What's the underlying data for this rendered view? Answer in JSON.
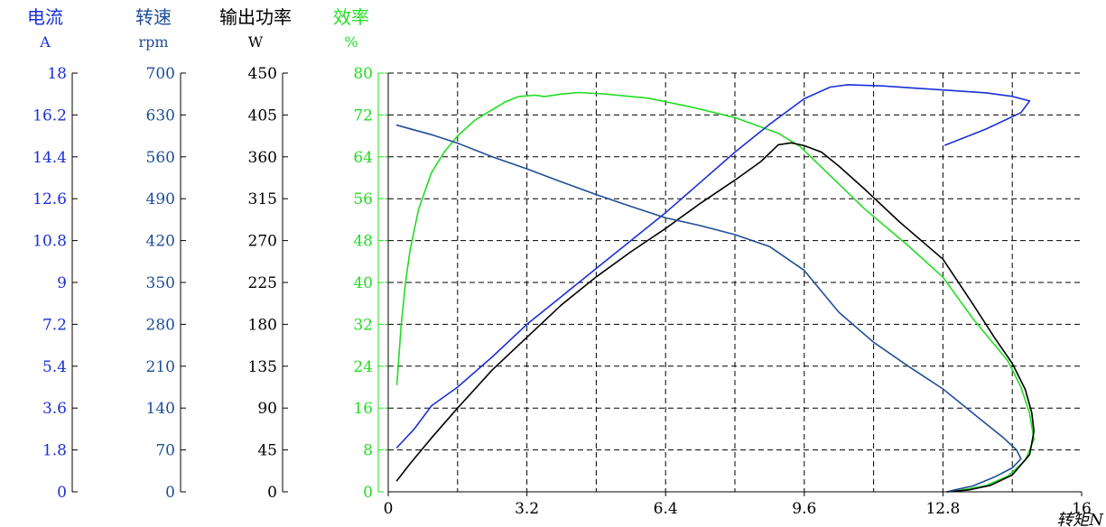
{
  "chart_data": {
    "type": "line",
    "title": "",
    "xlabel": "转矩N",
    "x_ticks": [
      "0",
      "3.2",
      "6.4",
      "9.6",
      "12.8",
      "16"
    ],
    "xlim": [
      0,
      16
    ],
    "grid": true,
    "axes": [
      {
        "id": "current",
        "title": "电流",
        "unit": "A",
        "color": "#1a2fd6",
        "range": [
          0,
          18
        ],
        "ticks": [
          "0",
          "1.8",
          "3.6",
          "5.4",
          "7.2",
          "9",
          "10.8",
          "12.6",
          "14.4",
          "16.2",
          "18"
        ]
      },
      {
        "id": "speed",
        "title": "转速",
        "unit": "rpm",
        "color": "#1f4e96",
        "range": [
          0,
          700
        ],
        "ticks": [
          "0",
          "70",
          "140",
          "210",
          "280",
          "350",
          "420",
          "490",
          "560",
          "630",
          "700"
        ]
      },
      {
        "id": "power",
        "title": "输出功率",
        "unit": "W",
        "color": "#000000",
        "range": [
          0,
          450
        ],
        "ticks": [
          "0",
          "45",
          "90",
          "135",
          "180",
          "225",
          "270",
          "315",
          "360",
          "405",
          "450"
        ]
      },
      {
        "id": "efficiency",
        "title": "效率",
        "unit": "%",
        "color": "#22dd22",
        "range": [
          0,
          80
        ],
        "ticks": [
          "0",
          "8",
          "16",
          "24",
          "32",
          "40",
          "48",
          "56",
          "64",
          "72",
          "80"
        ]
      }
    ],
    "series": [
      {
        "axis": "efficiency",
        "color": "#22dd22",
        "points": [
          [
            0.2,
            20.5
          ],
          [
            0.3,
            32
          ],
          [
            0.4,
            40
          ],
          [
            0.5,
            46
          ],
          [
            0.7,
            54
          ],
          [
            1.0,
            61
          ],
          [
            1.3,
            65
          ],
          [
            1.6,
            68
          ],
          [
            2.0,
            71
          ],
          [
            2.4,
            73
          ],
          [
            2.7,
            74.5
          ],
          [
            3.0,
            75.5
          ],
          [
            3.4,
            75.8
          ],
          [
            3.6,
            75.5
          ],
          [
            4.0,
            76
          ],
          [
            4.4,
            76.3
          ],
          [
            5.0,
            76
          ],
          [
            6.0,
            75.2
          ],
          [
            7.0,
            73.5
          ],
          [
            8.0,
            71.5
          ],
          [
            9.0,
            68.5
          ],
          [
            9.5,
            66
          ],
          [
            10.0,
            62
          ],
          [
            11.0,
            54
          ],
          [
            12.0,
            47
          ],
          [
            12.8,
            41
          ],
          [
            13.5,
            33
          ],
          [
            14.3,
            25
          ],
          [
            14.6,
            20
          ],
          [
            14.8,
            15
          ],
          [
            14.9,
            10
          ],
          [
            14.7,
            6
          ],
          [
            14.3,
            3
          ],
          [
            13.8,
            1.2
          ],
          [
            13.2,
            0.3
          ],
          [
            12.9,
            0
          ]
        ]
      },
      {
        "axis": "power",
        "color": "#000000",
        "points": [
          [
            0.2,
            12
          ],
          [
            0.5,
            30
          ],
          [
            1.0,
            58
          ],
          [
            1.6,
            90
          ],
          [
            2.4,
            131
          ],
          [
            3.2,
            166
          ],
          [
            4.0,
            201
          ],
          [
            4.8,
            231
          ],
          [
            5.6,
            258
          ],
          [
            6.4,
            283
          ],
          [
            7.2,
            310
          ],
          [
            8.0,
            335
          ],
          [
            8.6,
            355
          ],
          [
            9.0,
            373
          ],
          [
            9.3,
            375
          ],
          [
            9.6,
            372
          ],
          [
            10.0,
            365
          ],
          [
            10.4,
            350
          ],
          [
            11.0,
            325
          ],
          [
            11.8,
            290
          ],
          [
            12.8,
            250
          ],
          [
            13.5,
            201
          ],
          [
            14.0,
            165
          ],
          [
            14.4,
            138
          ],
          [
            14.7,
            110
          ],
          [
            14.85,
            85
          ],
          [
            14.9,
            65
          ],
          [
            14.8,
            40
          ],
          [
            14.4,
            18
          ],
          [
            13.9,
            7
          ],
          [
            13.4,
            2
          ],
          [
            12.9,
            0
          ]
        ]
      },
      {
        "axis": "current",
        "color": "#1a2fd6",
        "points": [
          [
            0.2,
            1.9
          ],
          [
            0.6,
            2.7
          ],
          [
            1.0,
            3.7
          ],
          [
            1.6,
            4.5
          ],
          [
            2.4,
            5.8
          ],
          [
            3.2,
            7.2
          ],
          [
            4.0,
            8.4
          ],
          [
            4.8,
            9.6
          ],
          [
            5.6,
            10.8
          ],
          [
            6.4,
            12.0
          ],
          [
            7.2,
            13.3
          ],
          [
            8.0,
            14.6
          ],
          [
            8.8,
            15.8
          ],
          [
            9.6,
            16.9
          ],
          [
            10.2,
            17.4
          ],
          [
            10.6,
            17.5
          ],
          [
            11.4,
            17.45
          ],
          [
            12.2,
            17.35
          ],
          [
            13.0,
            17.25
          ],
          [
            13.8,
            17.15
          ],
          [
            14.4,
            17.0
          ],
          [
            14.8,
            16.8
          ],
          [
            14.6,
            16.3
          ],
          [
            13.8,
            15.6
          ],
          [
            12.85,
            14.9
          ]
        ]
      },
      {
        "axis": "speed",
        "color": "#1f4e96",
        "points": [
          [
            0.2,
            613
          ],
          [
            1.0,
            597
          ],
          [
            1.6,
            583
          ],
          [
            2.4,
            560
          ],
          [
            3.2,
            540
          ],
          [
            4.0,
            518
          ],
          [
            4.8,
            497
          ],
          [
            5.6,
            477
          ],
          [
            6.4,
            458
          ],
          [
            7.2,
            445
          ],
          [
            8.0,
            430
          ],
          [
            8.8,
            410
          ],
          [
            9.6,
            370
          ],
          [
            10.4,
            300
          ],
          [
            11.2,
            250
          ],
          [
            12.0,
            210
          ],
          [
            12.8,
            172
          ],
          [
            13.6,
            125
          ],
          [
            14.2,
            90
          ],
          [
            14.5,
            70
          ],
          [
            14.6,
            55
          ],
          [
            14.4,
            40
          ],
          [
            14.0,
            25
          ],
          [
            13.5,
            10
          ],
          [
            13.0,
            2
          ],
          [
            12.9,
            0
          ]
        ]
      }
    ]
  }
}
